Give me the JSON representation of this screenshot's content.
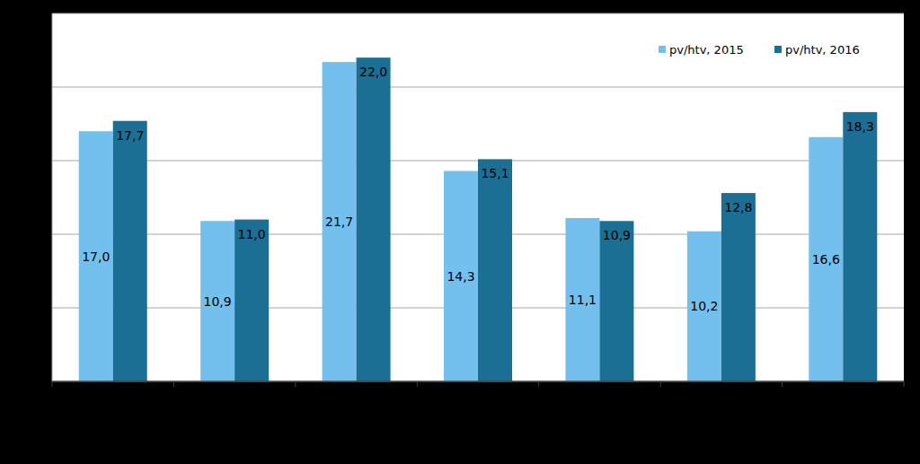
{
  "chart_data": {
    "type": "bar",
    "categories": [
      null,
      null,
      null,
      null,
      null,
      null,
      null
    ],
    "series": [
      {
        "name": "pv/htv, 2015",
        "color": "#73c0ef",
        "values": [
          17.0,
          10.9,
          21.7,
          14.3,
          11.1,
          10.2,
          16.6
        ],
        "value_labels": [
          "17,0",
          "10,9",
          "21,7",
          "14,3",
          "11,1",
          "10,2",
          "16,6"
        ]
      },
      {
        "name": "pv/htv, 2016",
        "color": "#1b6e94",
        "values": [
          17.7,
          11.0,
          22.0,
          15.1,
          10.9,
          12.8,
          18.3
        ],
        "value_labels": [
          "17,7",
          "11,0",
          "22,0",
          "15,1",
          "10,9",
          "12,8",
          "18,3"
        ]
      }
    ],
    "ylim": [
      0,
      25
    ],
    "yticks": [
      0,
      5,
      10,
      15,
      20,
      25
    ],
    "grid": true,
    "legend": "top-right",
    "data_labels": true,
    "tick_labels": false
  }
}
